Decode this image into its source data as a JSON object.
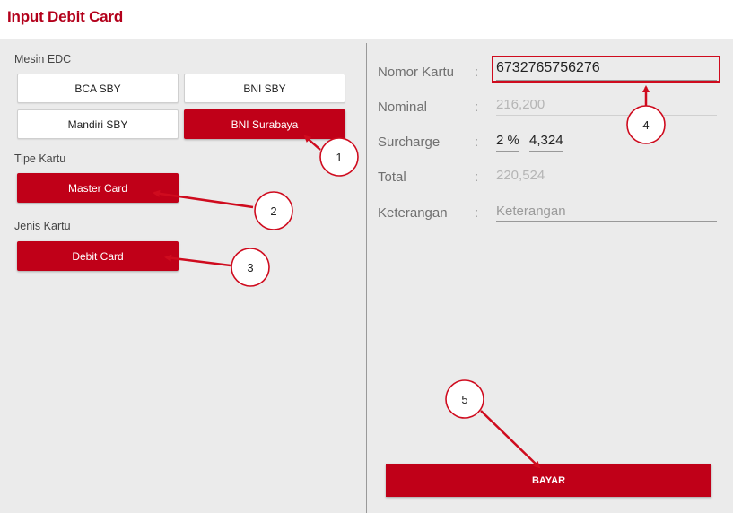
{
  "header": {
    "title": "Input Debit Card"
  },
  "edc": {
    "label": "Mesin EDC",
    "options": [
      "BCA SBY",
      "BNI SBY",
      "Mandiri SBY",
      "BNI Surabaya"
    ],
    "selected": "BNI Surabaya"
  },
  "tipe_kartu": {
    "label": "Tipe Kartu",
    "selected": "Master Card"
  },
  "jenis_kartu": {
    "label": "Jenis Kartu",
    "selected": "Debit Card"
  },
  "form": {
    "nomor_kartu": {
      "label": "Nomor Kartu",
      "value": "6732765756276"
    },
    "nominal": {
      "label": "Nominal",
      "value": "216,200"
    },
    "surcharge": {
      "label": "Surcharge",
      "percent": "2 %",
      "amount": "4,324"
    },
    "total": {
      "label": "Total",
      "value": "220,524"
    },
    "keterangan": {
      "label": "Keterangan",
      "placeholder": "Keterangan"
    },
    "colon": ":"
  },
  "bayar_button": "BAYAR",
  "annotations": [
    "1",
    "2",
    "3",
    "4",
    "5"
  ],
  "colors": {
    "accent": "#c00018",
    "annotation": "#cf0b1e"
  }
}
